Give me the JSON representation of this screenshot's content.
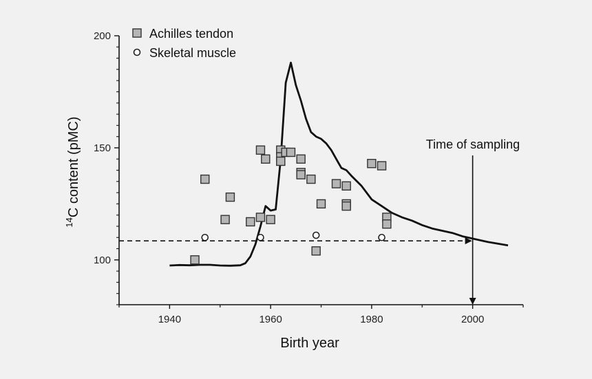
{
  "chart_data": {
    "type": "scatter",
    "xlabel": "Birth year",
    "ylabel_sup": "14",
    "ylabel": "C content (pMC)",
    "xlim": [
      1930,
      2010
    ],
    "ylim": [
      80,
      200
    ],
    "xticks": [
      1940,
      1960,
      1980,
      2000
    ],
    "yticks": [
      100,
      150,
      200
    ],
    "yminor_step": 5,
    "legend_placement": "top-left",
    "series": [
      {
        "name": "Achilles tendon",
        "marker": "square",
        "fill": "#b5b5b5",
        "points": [
          [
            1945,
            100
          ],
          [
            1947,
            136
          ],
          [
            1951,
            118
          ],
          [
            1952,
            128
          ],
          [
            1956,
            117
          ],
          [
            1958,
            149
          ],
          [
            1958,
            119
          ],
          [
            1959,
            145
          ],
          [
            1960,
            118
          ],
          [
            1962,
            149
          ],
          [
            1962,
            146
          ],
          [
            1962,
            144
          ],
          [
            1963,
            148
          ],
          [
            1964,
            148
          ],
          [
            1966,
            145
          ],
          [
            1966,
            139
          ],
          [
            1966,
            138
          ],
          [
            1968,
            136
          ],
          [
            1969,
            104
          ],
          [
            1970,
            125
          ],
          [
            1973,
            134
          ],
          [
            1975,
            133
          ],
          [
            1975,
            125
          ],
          [
            1975,
            124
          ],
          [
            1980,
            143
          ],
          [
            1982,
            142
          ],
          [
            1983,
            119
          ],
          [
            1983,
            116
          ]
        ]
      },
      {
        "name": "Skeletal muscle",
        "marker": "circle",
        "fill": "#ffffff",
        "points": [
          [
            1947,
            110
          ],
          [
            1958,
            110
          ],
          [
            1969,
            111
          ],
          [
            1982,
            110
          ]
        ]
      }
    ],
    "curve": [
      [
        1940,
        97.5
      ],
      [
        1942,
        97.7
      ],
      [
        1944,
        97.6
      ],
      [
        1946,
        97.8
      ],
      [
        1948,
        97.8
      ],
      [
        1950,
        97.5
      ],
      [
        1952,
        97.4
      ],
      [
        1954,
        97.6
      ],
      [
        1955,
        98.5
      ],
      [
        1956,
        101.5
      ],
      [
        1957,
        107
      ],
      [
        1958,
        115
      ],
      [
        1959,
        124
      ],
      [
        1960,
        122
      ],
      [
        1961,
        122.5
      ],
      [
        1962,
        145
      ],
      [
        1963,
        179
      ],
      [
        1964,
        188
      ],
      [
        1965,
        178
      ],
      [
        1966,
        171
      ],
      [
        1967,
        163
      ],
      [
        1968,
        157
      ],
      [
        1969,
        155
      ],
      [
        1970,
        154
      ],
      [
        1971,
        152
      ],
      [
        1972,
        149
      ],
      [
        1973,
        145
      ],
      [
        1974,
        141
      ],
      [
        1975,
        140
      ],
      [
        1976,
        137.5
      ],
      [
        1978,
        133
      ],
      [
        1980,
        127
      ],
      [
        1982,
        124
      ],
      [
        1984,
        121
      ],
      [
        1986,
        119
      ],
      [
        1988,
        117.5
      ],
      [
        1990,
        115.5
      ],
      [
        1992,
        114
      ],
      [
        1994,
        113
      ],
      [
        1996,
        112
      ],
      [
        1998,
        110.5
      ],
      [
        2000,
        109.5
      ],
      [
        2003,
        108
      ],
      [
        2007,
        106.5
      ]
    ],
    "reference_level": 108.5,
    "reference_x_start": 1930,
    "reference_x_end": 2000,
    "sampling_year": 2000,
    "annotation": "Time of sampling"
  },
  "colors": {
    "background": "#f1f1f1",
    "ink": "#111111",
    "tendon_fill": "#b5b5b5"
  }
}
